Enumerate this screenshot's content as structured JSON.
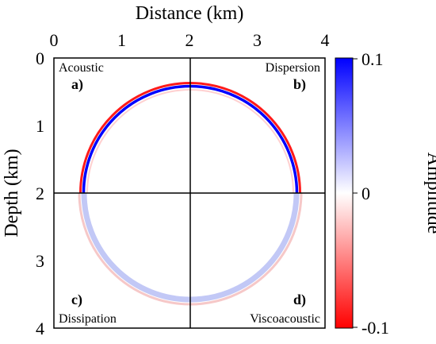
{
  "figure": {
    "x_axis": {
      "title": "Distance (km)",
      "range": [
        0,
        4
      ],
      "ticks": [
        {
          "value": 0,
          "label": "0"
        },
        {
          "value": 1,
          "label": "1"
        },
        {
          "value": 2,
          "label": "2"
        },
        {
          "value": 3,
          "label": "3"
        },
        {
          "value": 4,
          "label": "4"
        }
      ],
      "position": "top"
    },
    "y_axis": {
      "title": "Depth (km)",
      "range": [
        0,
        4
      ],
      "inverted": true,
      "ticks": [
        {
          "value": 0,
          "label": "0"
        },
        {
          "value": 1,
          "label": "1"
        },
        {
          "value": 2,
          "label": "2"
        },
        {
          "value": 3,
          "label": "3"
        },
        {
          "value": 4,
          "label": "4"
        }
      ]
    },
    "panels": [
      {
        "name": "Acoustic",
        "letter": "a)"
      },
      {
        "name": "Dispersion",
        "letter": "b)"
      },
      {
        "name": "Dissipation",
        "letter": "c)"
      },
      {
        "name": "Viscoacoustic",
        "letter": "d)"
      }
    ],
    "wavefront": {
      "center_km": [
        2,
        2
      ],
      "radius_km": 1.55
    },
    "colorbar": {
      "title": "Amplitude",
      "max_label": "0.1",
      "mid_label": "0",
      "min_label": "-0.1",
      "colors": {
        "positive": "#0000ff",
        "zero": "#ffffff",
        "negative": "#ff0000"
      }
    }
  }
}
